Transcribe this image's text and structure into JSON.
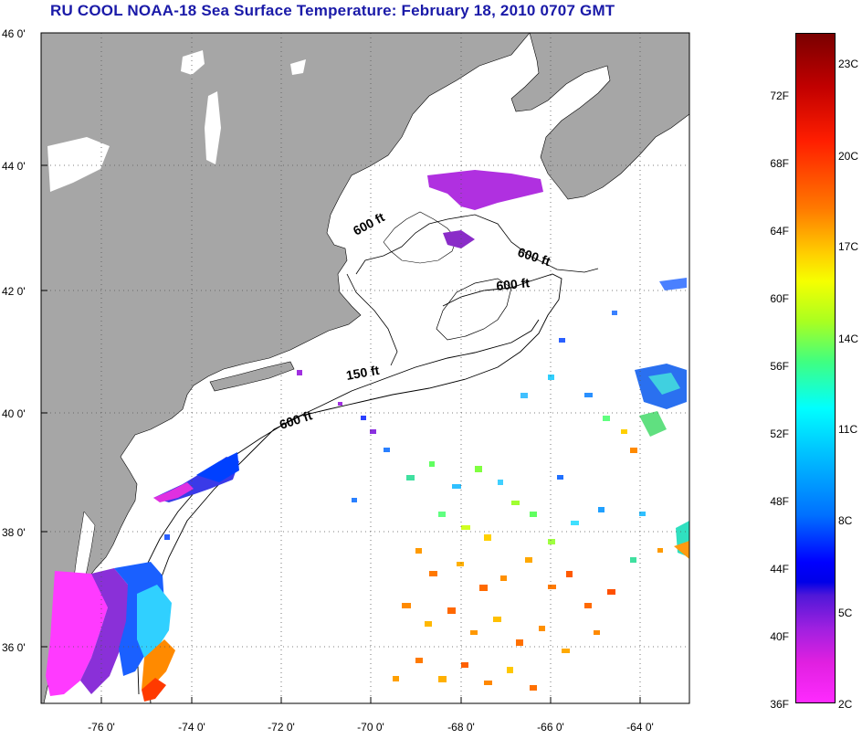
{
  "title": "RU COOL  NOAA-18  Sea Surface Temperature:  February 18, 2010 0707 GMT",
  "latitude_labels": [
    "46 0'",
    "44 0'",
    "42 0'",
    "40 0'",
    "38 0'",
    "36 0'"
  ],
  "longitude_labels": [
    "-76 0'",
    "-74 0'",
    "-72 0'",
    "-70 0'",
    "-68 0'",
    "-66 0'",
    "-64 0'"
  ],
  "isobath_labels": [
    "600 ft",
    "600 ft",
    "600 ft",
    "150 ft",
    "600 ft"
  ],
  "colorbar": {
    "fahrenheit_ticks": [
      "72F",
      "68F",
      "64F",
      "60F",
      "56F",
      "52F",
      "48F",
      "44F",
      "40F",
      "36F"
    ],
    "celsius_ticks": [
      "23C",
      "20C",
      "17C",
      "14C",
      "11C",
      "8C",
      "5C",
      "2C"
    ]
  },
  "colors": {
    "land": "#a6a6a6",
    "ocean": "#ffffff",
    "title": "#1a1aa8"
  }
}
